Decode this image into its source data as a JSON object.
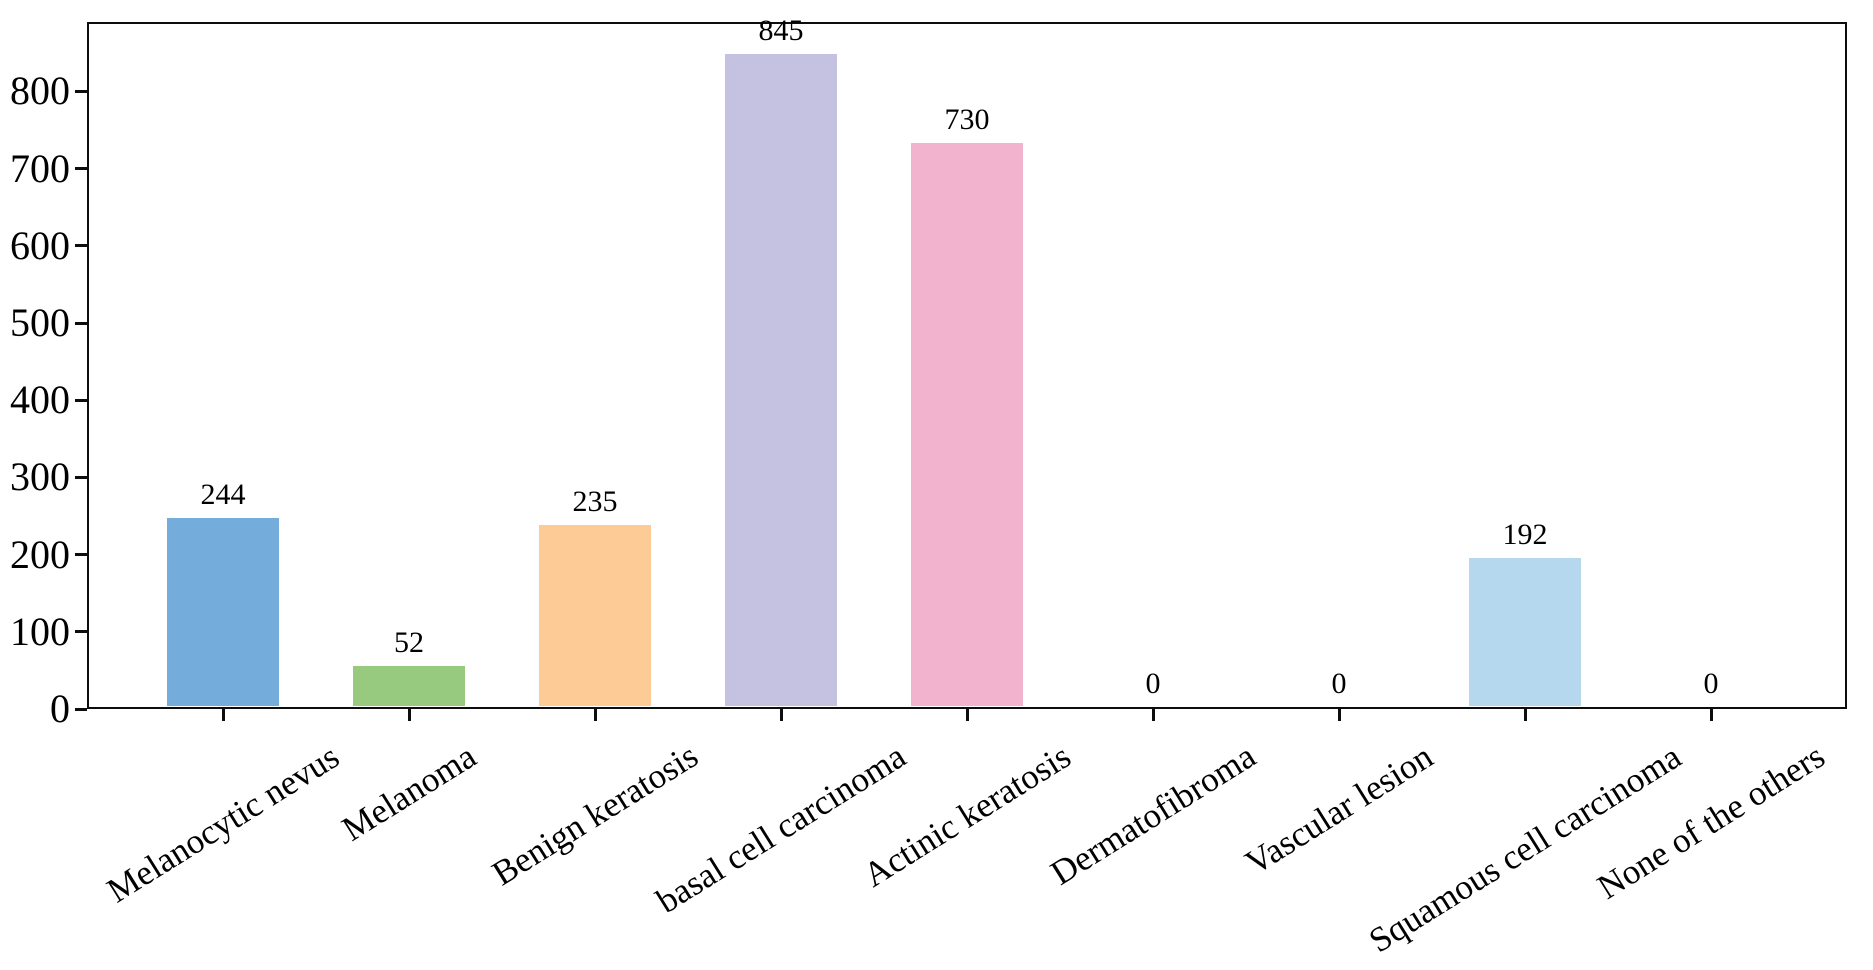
{
  "chart_data": {
    "type": "bar",
    "title": "",
    "xlabel": "",
    "ylabel": "",
    "categories": [
      "Melanocytic nevus",
      "Melanoma",
      "Benign keratosis",
      "basal cell carcinoma",
      "Actinic keratosis",
      "Dermatofibroma",
      "Vascular lesion",
      "Squamous cell carcinoma",
      "None of the others"
    ],
    "values": [
      244,
      52,
      235,
      845,
      730,
      0,
      0,
      192,
      0
    ],
    "bar_colors": [
      "#74ACDB",
      "#97C97E",
      "#FCCB96",
      "#C4C2E0",
      "#F2B3CE",
      null,
      null,
      "#B6D8EE",
      null
    ],
    "value_label_color": "#000000",
    "ylim": [
      0,
      890
    ],
    "yticks": [
      0,
      100,
      200,
      300,
      400,
      500,
      600,
      700,
      800
    ],
    "xtick_rotation_deg": 32,
    "grid": false,
    "legend_position": "none",
    "axis_color": "#0d0d0d",
    "tick_label_color": "#000000",
    "background_color": "#ffffff"
  }
}
